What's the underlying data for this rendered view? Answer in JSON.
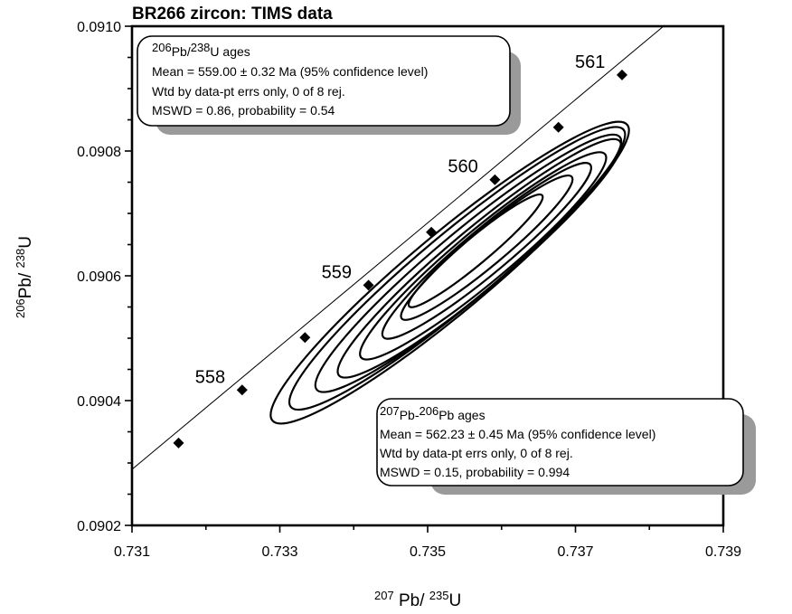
{
  "chart_data": {
    "type": "scatter",
    "title": "BR266 zircon: TIMS data",
    "xlabel": {
      "pre": "207",
      "mid": " Pb/ ",
      "sup2": "235",
      "post": "U"
    },
    "ylabel": {
      "pre": "206",
      "mid": "Pb/ ",
      "sup2": "238",
      "post": "U"
    },
    "xlim": [
      0.731,
      0.739
    ],
    "ylim": [
      0.0902,
      0.091
    ],
    "x_ticks": [
      "0.731",
      "0.733",
      "0.735",
      "0.737",
      "0.739"
    ],
    "y_ticks": [
      "0.0902",
      "0.0904",
      "0.0906",
      "0.0908",
      "0.0910"
    ],
    "grid": false,
    "concordia": {
      "line": [
        [
          0.7308,
          0.09027
        ],
        [
          0.7389,
          0.09107
        ]
      ],
      "markers": [
        {
          "x": 0.73163,
          "y": 0.090332
        },
        {
          "x": 0.73249,
          "y": 0.090417
        },
        {
          "x": 0.73334,
          "y": 0.090501
        },
        {
          "x": 0.7342,
          "y": 0.090585
        },
        {
          "x": 0.73505,
          "y": 0.09067
        },
        {
          "x": 0.73591,
          "y": 0.090754
        },
        {
          "x": 0.73677,
          "y": 0.090838
        },
        {
          "x": 0.73763,
          "y": 0.090922
        }
      ],
      "age_labels": [
        {
          "label": "558",
          "x": 0.73249,
          "y": 0.090417
        },
        {
          "label": "559",
          "x": 0.7342,
          "y": 0.090585
        },
        {
          "label": "560",
          "x": 0.73591,
          "y": 0.090754
        },
        {
          "label": "561",
          "x": 0.73763,
          "y": 0.090922
        }
      ]
    },
    "error_ellipses": [
      {
        "cx": 0.7353,
        "cy": 0.090605,
        "rx": 0.0024,
        "ry": 0.000285
      },
      {
        "cx": 0.7354,
        "cy": 0.090612,
        "rx": 0.00225,
        "ry": 0.00026
      },
      {
        "cx": 0.73555,
        "cy": 0.09062,
        "rx": 0.00205,
        "ry": 0.000235
      },
      {
        "cx": 0.7357,
        "cy": 0.090628,
        "rx": 0.0019,
        "ry": 0.000215
      },
      {
        "cx": 0.73575,
        "cy": 0.090632,
        "rx": 0.00165,
        "ry": 0.00019
      },
      {
        "cx": 0.7358,
        "cy": 0.09064,
        "rx": 0.0014,
        "ry": 0.00016
      },
      {
        "cx": 0.7358,
        "cy": 0.090645,
        "rx": 0.00115,
        "ry": 0.00013
      },
      {
        "cx": 0.73565,
        "cy": 0.09064,
        "rx": 0.0009,
        "ry": 9.5e-05
      }
    ],
    "annotations": {
      "box_206_238": {
        "heading_sup1": "206",
        "heading_mid": "Pb/",
        "heading_sup2": "238",
        "heading_post": "U ages",
        "lines": [
          "Mean = 559.00 ± 0.32 Ma (95% confidence level)",
          "Wtd by data-pt errs only, 0 of 8 rej.",
          "MSWD = 0.86, probability = 0.54"
        ]
      },
      "box_207_206": {
        "heading_sup1": "207",
        "heading_mid": "Pb-",
        "heading_sup2": "206",
        "heading_post": "Pb ages",
        "lines": [
          "Mean = 562.23  ± 0.45 Ma (95% confidence level)",
          "Wtd by data-pt errs only, 0 of 8 rej.",
          "MSWD = 0.15, probability = 0.994"
        ]
      }
    }
  }
}
